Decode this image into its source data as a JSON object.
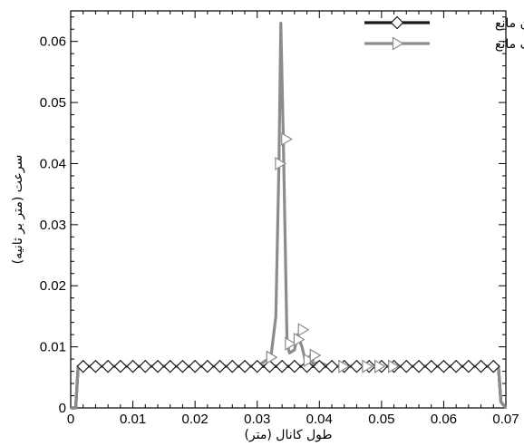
{
  "chart_data": {
    "type": "line",
    "xlabel": "طول کانال (متر)",
    "ylabel": "سرعت (متر بر ثانیه)",
    "xlim": [
      0,
      0.07
    ],
    "ylim": [
      0,
      0.065
    ],
    "xticks": [
      0,
      0.01,
      0.02,
      0.03,
      0.04,
      0.05,
      0.06,
      0.07
    ],
    "xtick_labels": [
      "0",
      "0.01",
      "0.02",
      "0.03",
      "0.04",
      "0.05",
      "0.06",
      "0.07"
    ],
    "yticks": [
      0,
      0.01,
      0.02,
      0.03,
      0.04,
      0.05,
      0.06
    ],
    "ytick_labels": [
      "0",
      "0.01",
      "0.02",
      "0.03",
      "0.04",
      "0.05",
      "0.06"
    ],
    "legend_position": "top-right",
    "series": [
      {
        "name": "بدون مانع",
        "color": "#1a1a1a",
        "marker": "diamond",
        "x": [
          0,
          0.0008,
          0.0012,
          0.002,
          0.068,
          0.0688,
          0.0692,
          0.07
        ],
        "y": [
          0,
          0,
          0.0068,
          0.0068,
          0.0068,
          0.0068,
          0.001,
          0
        ],
        "marker_x": [
          0.002,
          0.004,
          0.006,
          0.008,
          0.01,
          0.012,
          0.014,
          0.016,
          0.018,
          0.02,
          0.022,
          0.024,
          0.026,
          0.028,
          0.03,
          0.032,
          0.034,
          0.036,
          0.038,
          0.04,
          0.042,
          0.044,
          0.046,
          0.048,
          0.05,
          0.052,
          0.054,
          0.056,
          0.058,
          0.06,
          0.062,
          0.064,
          0.066,
          0.068
        ]
      },
      {
        "name": "با یک مانع",
        "color": "#8c8c8c",
        "marker": "triangle-right",
        "x": [
          0,
          0.0008,
          0.0012,
          0.002,
          0.03,
          0.031,
          0.0322,
          0.033,
          0.0335,
          0.0338,
          0.0342,
          0.0348,
          0.0352,
          0.036,
          0.0365,
          0.0372,
          0.0378,
          0.0385,
          0.039,
          0.04,
          0.041,
          0.043,
          0.068,
          0.0688,
          0.0692,
          0.07
        ],
        "y": [
          0,
          0,
          0.0068,
          0.0068,
          0.0068,
          0.0075,
          0.0083,
          0.015,
          0.04,
          0.063,
          0.044,
          0.0105,
          0.009,
          0.0095,
          0.012,
          0.01,
          0.0075,
          0.0085,
          0.0072,
          0.0075,
          0.007,
          0.0068,
          0.0068,
          0.0068,
          0.001,
          0
        ],
        "marker_points": [
          [
            0.0322,
            0.0083
          ],
          [
            0.0336,
            0.04
          ],
          [
            0.0346,
            0.044
          ],
          [
            0.0352,
            0.0105
          ],
          [
            0.0366,
            0.0112
          ],
          [
            0.0373,
            0.0128
          ],
          [
            0.0382,
            0.0078
          ],
          [
            0.0392,
            0.0086
          ],
          [
            0.0438,
            0.0068
          ],
          [
            0.0476,
            0.0068
          ],
          [
            0.0496,
            0.0068
          ],
          [
            0.0518,
            0.0068
          ]
        ]
      }
    ]
  }
}
